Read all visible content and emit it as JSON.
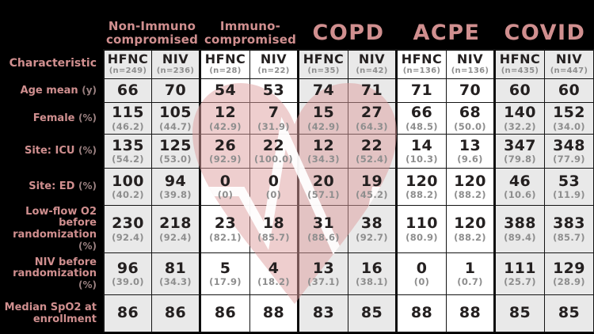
{
  "colors": {
    "background": "#000000",
    "accent_pink": "#d08f8f",
    "unit_gray": "#9a8080",
    "value_dark": "#242020",
    "muted_gray": "#8e8e8e",
    "grid_line": "#141414",
    "panel_gray": "#e9e9e9",
    "panel_white": "#ffffff",
    "heart_pink": "#dd9e9e",
    "ekg_white": "#ffffff"
  },
  "watermark": {
    "icon": "heart-ekg",
    "heart_color": "#dd9e9e",
    "line_color": "#ffffff"
  },
  "chart_data": {
    "type": "table",
    "corner_label": "Characteristic",
    "groups": [
      {
        "label_lines": [
          "Non-Immuno",
          "compromised"
        ],
        "size": "small",
        "bg": "#e9e9e9",
        "columns": [
          {
            "device": "HFNC",
            "n": "(n=249)"
          },
          {
            "device": "NIV",
            "n": "(n=236)"
          }
        ]
      },
      {
        "label_lines": [
          "Immuno-",
          "compromised"
        ],
        "size": "small",
        "bg": "#ffffff",
        "columns": [
          {
            "device": "HFNC",
            "n": "(n=28)"
          },
          {
            "device": "NIV",
            "n": "(n=22)"
          }
        ]
      },
      {
        "label_lines": [
          "COPD"
        ],
        "size": "large",
        "bg": "#e9e9e9",
        "columns": [
          {
            "device": "HFNC",
            "n": "(n=35)"
          },
          {
            "device": "NIV",
            "n": "(n=42)"
          }
        ]
      },
      {
        "label_lines": [
          "ACPE"
        ],
        "size": "large",
        "bg": "#ffffff",
        "columns": [
          {
            "device": "HFNC",
            "n": "(n=136)"
          },
          {
            "device": "NIV",
            "n": "(n=136)"
          }
        ]
      },
      {
        "label_lines": [
          "COVID"
        ],
        "size": "large",
        "bg": "#e9e9e9",
        "columns": [
          {
            "device": "HFNC",
            "n": "(n=435)"
          },
          {
            "device": "NIV",
            "n": "(n=447)"
          }
        ]
      }
    ],
    "rows": [
      {
        "label": "Age mean",
        "unit": "(y)",
        "cells": [
          {
            "v": "66"
          },
          {
            "v": "70"
          },
          {
            "v": "54"
          },
          {
            "v": "53"
          },
          {
            "v": "74"
          },
          {
            "v": "71"
          },
          {
            "v": "71"
          },
          {
            "v": "70"
          },
          {
            "v": "60"
          },
          {
            "v": "60"
          }
        ]
      },
      {
        "label": "Female",
        "unit": "(%)",
        "cells": [
          {
            "v": "115",
            "p": "(46.2)"
          },
          {
            "v": "105",
            "p": "(44.7)"
          },
          {
            "v": "12",
            "p": "(42.9)"
          },
          {
            "v": "7",
            "p": "(31.9)"
          },
          {
            "v": "15",
            "p": "(42.9)"
          },
          {
            "v": "27",
            "p": "(64.3)"
          },
          {
            "v": "66",
            "p": "(48.5)"
          },
          {
            "v": "68",
            "p": "(50.0)"
          },
          {
            "v": "140",
            "p": "(32.2)"
          },
          {
            "v": "152",
            "p": "(34.0)"
          }
        ]
      },
      {
        "label": "Site: ICU",
        "unit": "(%)",
        "cells": [
          {
            "v": "135",
            "p": "(54.2)"
          },
          {
            "v": "125",
            "p": "(53.0)"
          },
          {
            "v": "26",
            "p": "(92.9)"
          },
          {
            "v": "22",
            "p": "(100.0)"
          },
          {
            "v": "12",
            "p": "(34.3)"
          },
          {
            "v": "22",
            "p": "(52.4)"
          },
          {
            "v": "14",
            "p": "(10.3)"
          },
          {
            "v": "13",
            "p": "(9.6)"
          },
          {
            "v": "347",
            "p": "(79.8)"
          },
          {
            "v": "348",
            "p": "(77.9)"
          }
        ]
      },
      {
        "label": "Site: ED",
        "unit": "(%)",
        "cells": [
          {
            "v": "100",
            "p": "(40.2)"
          },
          {
            "v": "94",
            "p": "(39.8)"
          },
          {
            "v": "0",
            "p": "(0)"
          },
          {
            "v": "0",
            "p": "(0)"
          },
          {
            "v": "20",
            "p": "(57.1)"
          },
          {
            "v": "19",
            "p": "(45.2)"
          },
          {
            "v": "120",
            "p": "(88.2)"
          },
          {
            "v": "120",
            "p": "(88.2)"
          },
          {
            "v": "46",
            "p": "(10.6)"
          },
          {
            "v": "53",
            "p": "(11.9)"
          }
        ]
      },
      {
        "label": "Low-flow O2 before randomization",
        "unit": "(%)",
        "cells": [
          {
            "v": "230",
            "p": "(92.4)"
          },
          {
            "v": "218",
            "p": "(92.4)"
          },
          {
            "v": "23",
            "p": "(82.1)"
          },
          {
            "v": "18",
            "p": "(85.7)"
          },
          {
            "v": "31",
            "p": "(88.6)"
          },
          {
            "v": "38",
            "p": "(92.7)"
          },
          {
            "v": "110",
            "p": "(80.9)"
          },
          {
            "v": "120",
            "p": "(88.2)"
          },
          {
            "v": "388",
            "p": "(89.4)"
          },
          {
            "v": "383",
            "p": "(85.7)"
          }
        ]
      },
      {
        "label": "NIV before randomization",
        "unit": "(%)",
        "cells": [
          {
            "v": "96",
            "p": "(39.0)"
          },
          {
            "v": "81",
            "p": "(34.3)"
          },
          {
            "v": "5",
            "p": "(17.9)"
          },
          {
            "v": "4",
            "p": "(18.2)"
          },
          {
            "v": "13",
            "p": "(37.1)"
          },
          {
            "v": "16",
            "p": "(38.1)"
          },
          {
            "v": "0",
            "p": "(0)"
          },
          {
            "v": "1",
            "p": "(0.7)"
          },
          {
            "v": "111",
            "p": "(25.7)"
          },
          {
            "v": "129",
            "p": "(28.9)"
          }
        ]
      },
      {
        "label": "Median SpO2 at enrollment",
        "unit": "",
        "cells": [
          {
            "v": "86"
          },
          {
            "v": "86"
          },
          {
            "v": "86"
          },
          {
            "v": "88"
          },
          {
            "v": "83"
          },
          {
            "v": "85"
          },
          {
            "v": "88"
          },
          {
            "v": "88"
          },
          {
            "v": "85"
          },
          {
            "v": "85"
          }
        ]
      }
    ]
  }
}
